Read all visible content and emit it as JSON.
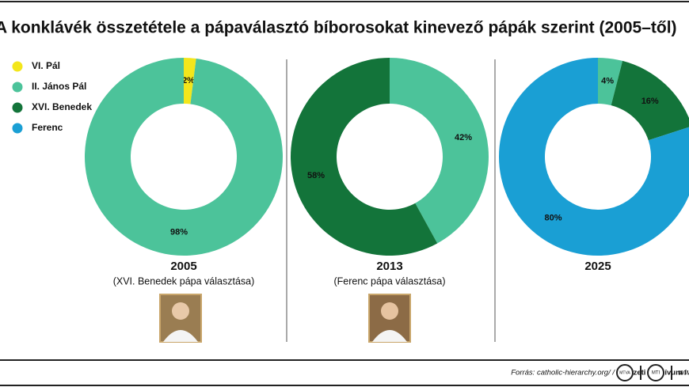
{
  "title": "A konklávék összetétele a pápaválasztó bíborosokat kinevező pápák szerint (2005–től)",
  "legend": [
    {
      "name": "VI. Pál",
      "color": "#f3e61b"
    },
    {
      "name": "II. János Pál",
      "color": "#4cc39a"
    },
    {
      "name": "XVI. Benedek",
      "color": "#13743a"
    },
    {
      "name": "Ferenc",
      "color": "#1a9fd4"
    }
  ],
  "chart_data": [
    {
      "type": "pie",
      "donut": true,
      "title": "2005",
      "subtitle": "(XVI. Benedek pápa választása)",
      "categories": [
        "VI. Pál",
        "II. János Pál"
      ],
      "values": [
        2,
        98
      ],
      "value_labels": [
        "2%",
        "98%"
      ],
      "colors": [
        "#f3e61b",
        "#4cc39a"
      ]
    },
    {
      "type": "pie",
      "donut": true,
      "title": "2013",
      "subtitle": "(Ferenc pápa választása)",
      "categories": [
        "II. János Pál",
        "XVI. Benedek"
      ],
      "values": [
        42,
        58
      ],
      "value_labels": [
        "42%",
        "58%"
      ],
      "colors": [
        "#4cc39a",
        "#13743a"
      ]
    },
    {
      "type": "pie",
      "donut": true,
      "title": "2025",
      "categories": [
        "II. János Pál",
        "XVI. Benedek",
        "Ferenc"
      ],
      "values": [
        4,
        16,
        80
      ],
      "value_labels": [
        "4%",
        "16%",
        "80%"
      ],
      "colors": [
        "#4cc39a",
        "#13743a",
        "#1a9fd4"
      ]
    }
  ],
  "footer": {
    "source": "Forrás: catholic-hierarchy.org/ /",
    "credit": "Nemzeti Archívum / MTI",
    "logo1": "MTVA",
    "logo2": "MTI",
    "web": "www"
  }
}
